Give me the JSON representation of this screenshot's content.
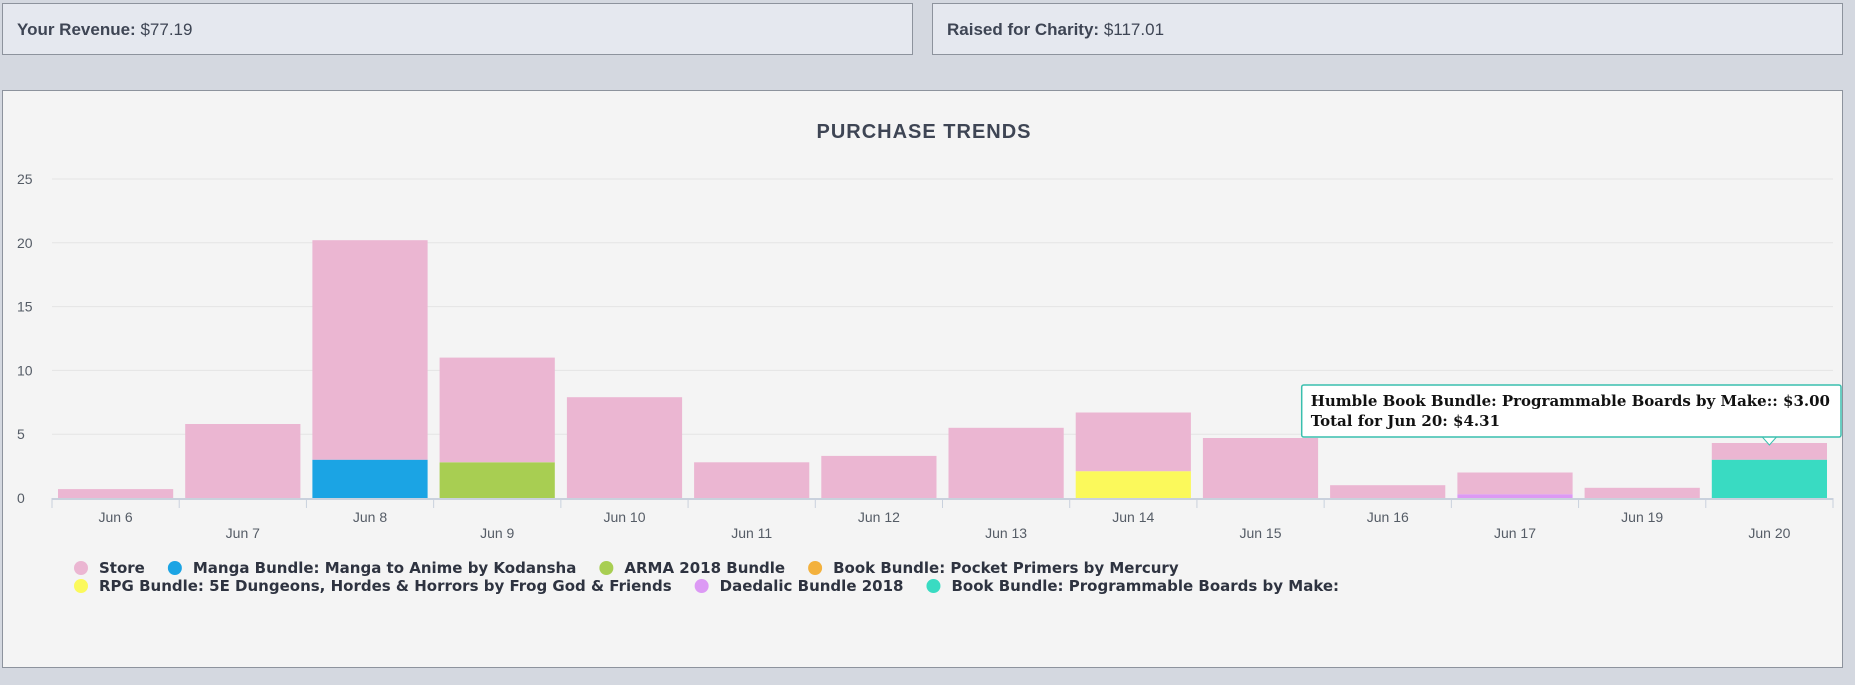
{
  "stats": {
    "revenue_label": "Your Revenue:",
    "revenue_value": "$77.19",
    "charity_label": "Raised for Charity:",
    "charity_value": "$117.01"
  },
  "chart_data": {
    "type": "bar",
    "stacked": true,
    "title": "PURCHASE TRENDS",
    "xlabel": "",
    "ylabel": "",
    "ylim": [
      0,
      25
    ],
    "yticks": [
      0,
      5,
      10,
      15,
      20,
      25
    ],
    "grid": true,
    "legend_position": "bottom-left",
    "categories": [
      "Jun 6",
      "Jun 7",
      "Jun 8",
      "Jun 9",
      "Jun 10",
      "Jun 11",
      "Jun 12",
      "Jun 13",
      "Jun 14",
      "Jun 15",
      "Jun 16",
      "Jun 17",
      "Jun 19",
      "Jun 20"
    ],
    "series": [
      {
        "name": "Store",
        "color": "#ebb6d2",
        "values": [
          0.7,
          5.8,
          17.2,
          8.2,
          7.9,
          2.8,
          3.3,
          5.5,
          4.6,
          4.7,
          1.0,
          1.7,
          0.8,
          1.31
        ]
      },
      {
        "name": "Manga Bundle: Manga to Anime by Kodansha",
        "color": "#1ba4e4",
        "values": [
          0,
          0,
          3.0,
          0,
          0,
          0,
          0,
          0,
          0,
          0,
          0,
          0,
          0,
          0
        ]
      },
      {
        "name": "ARMA 2018 Bundle",
        "color": "#a8ce52",
        "values": [
          0,
          0,
          0,
          2.8,
          0,
          0,
          0,
          0,
          0,
          0,
          0,
          0,
          0,
          0
        ]
      },
      {
        "name": "Book Bundle: Pocket Primers by Mercury",
        "color": "#f3b13d",
        "values": [
          0,
          0,
          0,
          0,
          0,
          0,
          0,
          0,
          0,
          0,
          0,
          0,
          0,
          0
        ]
      },
      {
        "name": "RPG Bundle: 5E Dungeons, Hordes & Horrors by Frog God & Friends",
        "color": "#fbf95b",
        "values": [
          0,
          0,
          0,
          0,
          0,
          0,
          0,
          0,
          2.1,
          0,
          0,
          0,
          0,
          0
        ]
      },
      {
        "name": "Daedalic Bundle 2018",
        "color": "#dc99f4",
        "values": [
          0,
          0,
          0,
          0,
          0,
          0,
          0,
          0,
          0,
          0,
          0,
          0.3,
          0,
          0
        ]
      },
      {
        "name": "Book Bundle: Programmable Boards by Make:",
        "color": "#39dbc2",
        "values": [
          0,
          0,
          0,
          0,
          0,
          0,
          0,
          0,
          0,
          0,
          0,
          0,
          0,
          3.0
        ]
      }
    ],
    "tooltip": {
      "category": "Jun 20",
      "line1": "Humble Book Bundle: Programmable Boards by Make:: $3.00",
      "line2": "Total for Jun 20: $4.31",
      "border_color": "#39bfae"
    }
  }
}
